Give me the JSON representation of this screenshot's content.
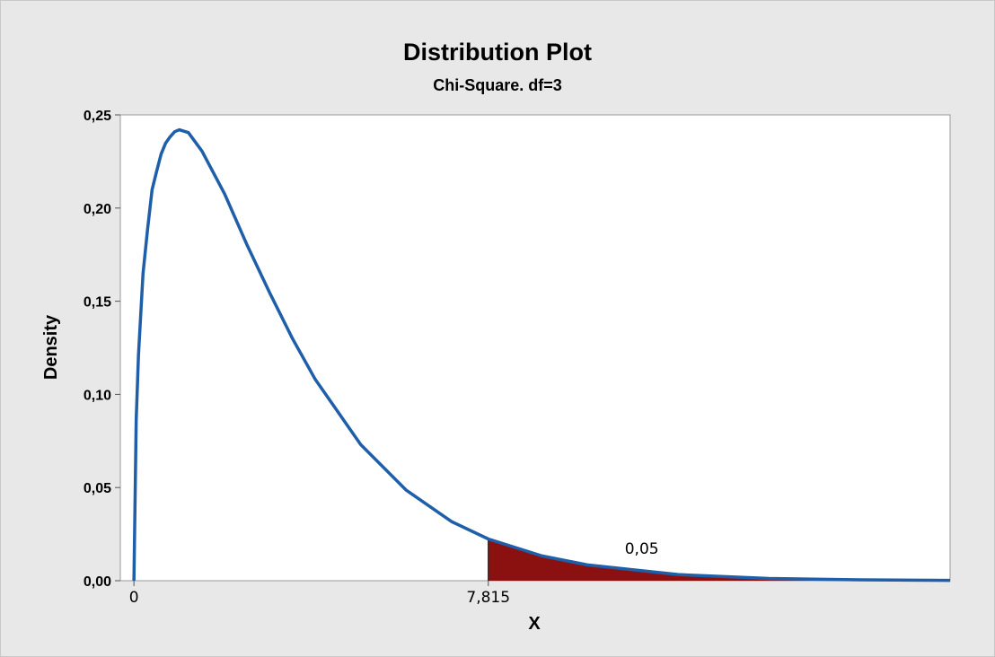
{
  "chart_data": {
    "type": "area",
    "title": "Distribution Plot",
    "subtitle": "Chi-Square. df=3",
    "xlabel": "X",
    "ylabel": "Density",
    "distribution": "chi-square",
    "df": 3,
    "xlim": [
      -0.3,
      18.0
    ],
    "ylim": [
      0,
      0.25
    ],
    "yticks": [
      "0,00",
      "0,05",
      "0,10",
      "0,15",
      "0,20",
      "0,25"
    ],
    "ytick_values": [
      0,
      0.05,
      0.1,
      0.15,
      0.2,
      0.25
    ],
    "xticks": [
      "0",
      "7,815"
    ],
    "xtick_values": [
      0,
      7.815
    ],
    "critical_value": 7.815,
    "shaded_region": {
      "from": 7.815,
      "to": 18.0,
      "area_label": "0,05",
      "area": 0.05
    },
    "curve": {
      "x": [
        0,
        0.05,
        0.1,
        0.2,
        0.3,
        0.4,
        0.5,
        0.6,
        0.7,
        0.8,
        0.9,
        1.0,
        1.2,
        1.5,
        2.0,
        2.5,
        3.0,
        3.5,
        4.0,
        5.0,
        6.0,
        7.0,
        7.815,
        9.0,
        10.0,
        12.0,
        14.0,
        16.0,
        18.0
      ],
      "y": [
        0,
        0.0864,
        0.121,
        0.1647,
        0.1885,
        0.2098,
        0.2197,
        0.229,
        0.2349,
        0.2383,
        0.241,
        0.242,
        0.2405,
        0.2306,
        0.2076,
        0.1799,
        0.1542,
        0.1298,
        0.108,
        0.0731,
        0.0487,
        0.0318,
        0.0224,
        0.0133,
        0.0085,
        0.0033,
        0.0012,
        0.0005,
        0.0002
      ]
    },
    "legend": "none",
    "grid": false
  },
  "colors": {
    "curve": "#1f5ea8",
    "shade": "#8b1111",
    "frame": "#e8e8e8"
  }
}
